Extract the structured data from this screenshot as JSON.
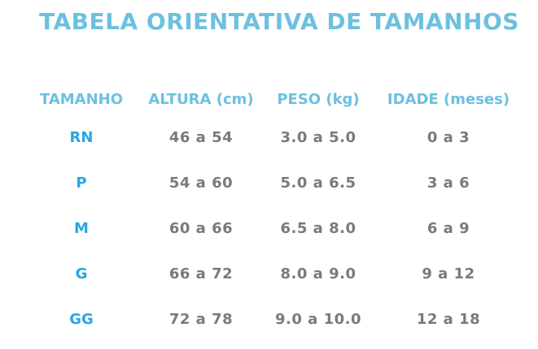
{
  "title": "TABELA ORIENTATIVA DE TAMANHOS",
  "table": {
    "header": [
      "TAMANHO",
      "ALTURA (cm)",
      "PESO (kg)",
      "IDADE (meses)"
    ],
    "rows": [
      [
        "RN",
        "46 a 54",
        "3.0 a 5.0",
        "0 a 3"
      ],
      [
        "P",
        "54 a 60",
        "5.0 a 6.5",
        "3 a 6"
      ],
      [
        "M",
        "60 a 66",
        "6.5 a 8.0",
        "6 a 9"
      ],
      [
        "G",
        "66 a 72",
        "8.0 a 9.0",
        "9 a 12"
      ],
      [
        "GG",
        "72 a 78",
        "9.0 a 10.0",
        "12 a 18"
      ]
    ]
  }
}
